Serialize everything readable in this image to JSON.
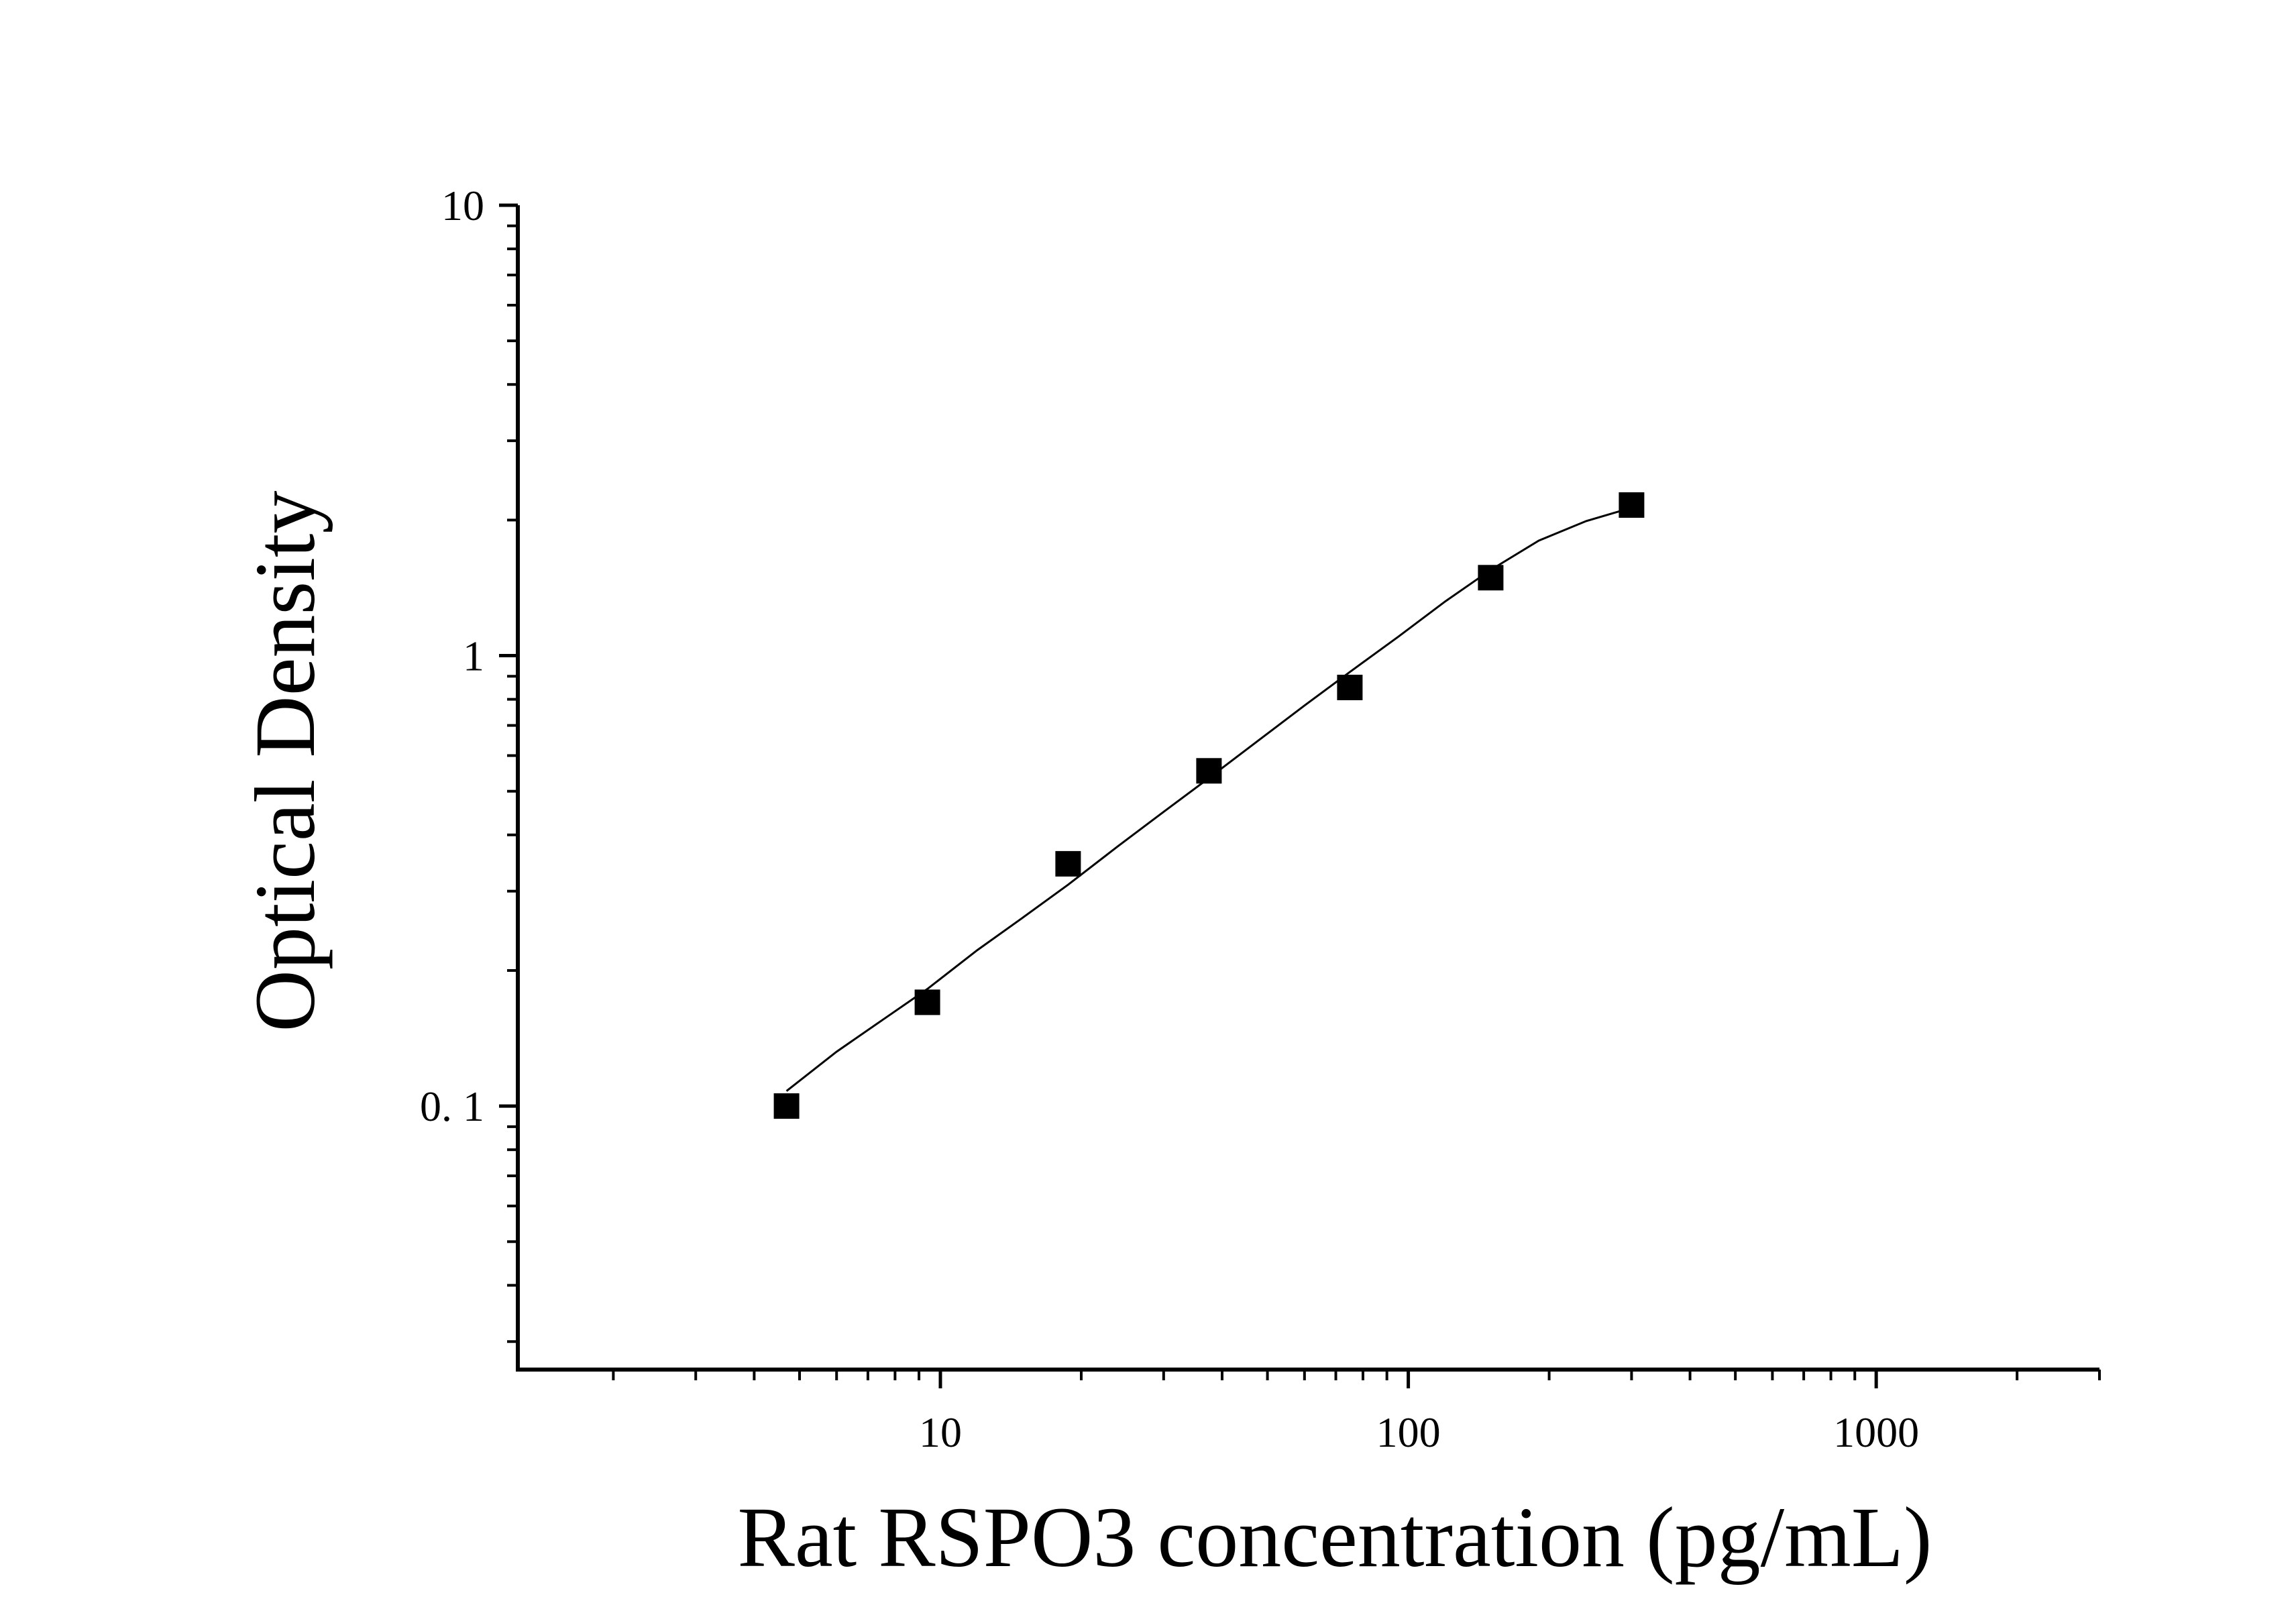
{
  "chart_data": {
    "type": "scatter",
    "title": "",
    "xlabel": "Rat RSPO3 concentration (pg/mL)",
    "ylabel": "Optical Density",
    "x_scale": "log",
    "y_scale": "log",
    "xlim": [
      1.25,
      3000
    ],
    "ylim": [
      0.026,
      10
    ],
    "x_ticks": [
      {
        "value": 10,
        "label": "10"
      },
      {
        "value": 100,
        "label": "100"
      },
      {
        "value": 1000,
        "label": "1000"
      }
    ],
    "y_ticks": [
      {
        "value": 0.1,
        "label": "0. 1"
      },
      {
        "value": 1,
        "label": "1"
      },
      {
        "value": 10,
        "label": "10"
      }
    ],
    "grid": false,
    "legend": "none",
    "series": [
      {
        "marker": "square",
        "color": "#000000",
        "x": [
          4.69,
          9.38,
          18.75,
          37.5,
          75,
          150,
          300
        ],
        "y": [
          0.1,
          0.17,
          0.345,
          0.555,
          0.85,
          1.49,
          2.16
        ]
      }
    ],
    "fit_curve": {
      "type": "line",
      "color": "#000000",
      "x": [
        4.69,
        6,
        7.5,
        9.38,
        12,
        15,
        18.75,
        24,
        30,
        37.5,
        48,
        60,
        75,
        95,
        120,
        150,
        190,
        240,
        300
      ],
      "y": [
        0.108,
        0.132,
        0.155,
        0.182,
        0.222,
        0.262,
        0.31,
        0.378,
        0.45,
        0.535,
        0.65,
        0.775,
        0.92,
        1.1,
        1.32,
        1.55,
        1.8,
        1.99,
        2.13
      ]
    }
  }
}
